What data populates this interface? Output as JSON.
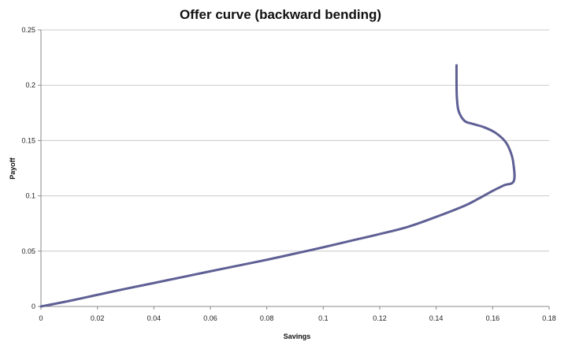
{
  "chart_data": {
    "type": "line",
    "title": "Offer curve (backward bending)",
    "xlabel": "Savings",
    "ylabel": "Payoff",
    "xlim": [
      0,
      0.18
    ],
    "ylim": [
      0,
      0.25
    ],
    "x_ticks": [
      0,
      0.02,
      0.04,
      0.06,
      0.08,
      0.1,
      0.12,
      0.14,
      0.16,
      0.18
    ],
    "y_ticks": [
      0,
      0.05,
      0.1,
      0.15,
      0.2,
      0.25
    ],
    "x_tick_labels": [
      "0",
      "0.02",
      "0.04",
      "0.06",
      "0.08",
      "0.1",
      "0.12",
      "0.14",
      "0.16",
      "0.18"
    ],
    "y_tick_labels": [
      "0",
      "0.05",
      "0.1",
      "0.15",
      "0.2",
      "0.25"
    ],
    "grid": "horizontal",
    "legend": "none",
    "series": [
      {
        "color": "#5e5f94",
        "points": [
          [
            0,
            0
          ],
          [
            0.01,
            0.005
          ],
          [
            0.02,
            0.0105
          ],
          [
            0.03,
            0.016
          ],
          [
            0.04,
            0.0212
          ],
          [
            0.05,
            0.0265
          ],
          [
            0.06,
            0.0318
          ],
          [
            0.07,
            0.037
          ],
          [
            0.08,
            0.0422
          ],
          [
            0.09,
            0.0478
          ],
          [
            0.1,
            0.0535
          ],
          [
            0.11,
            0.0595
          ],
          [
            0.12,
            0.0655
          ],
          [
            0.13,
            0.072
          ],
          [
            0.14,
            0.081
          ],
          [
            0.15,
            0.091
          ],
          [
            0.155,
            0.0975
          ],
          [
            0.16,
            0.1045
          ],
          [
            0.164,
            0.1095
          ],
          [
            0.1675,
            0.1135
          ],
          [
            0.1673,
            0.13
          ],
          [
            0.1663,
            0.14
          ],
          [
            0.1645,
            0.149
          ],
          [
            0.161,
            0.157
          ],
          [
            0.157,
            0.162
          ],
          [
            0.153,
            0.165
          ],
          [
            0.1505,
            0.167
          ],
          [
            0.149,
            0.171
          ],
          [
            0.1478,
            0.178
          ],
          [
            0.1473,
            0.19
          ],
          [
            0.1472,
            0.205
          ],
          [
            0.1472,
            0.218
          ]
        ]
      }
    ]
  }
}
